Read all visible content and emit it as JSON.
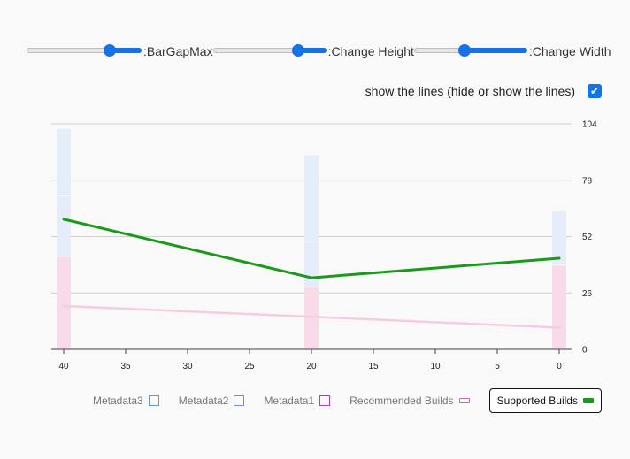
{
  "controls": {
    "sliders": [
      {
        "label": ":BarGapMax",
        "value": 0.75
      },
      {
        "label": ":Change Height",
        "value": 0.78
      },
      {
        "label": ":Change Width",
        "value": 0.44
      }
    ],
    "toggle": {
      "label": "show the lines (hide or show the lines)",
      "checked": true
    }
  },
  "colors": {
    "accent": "#1473e6",
    "metadata3": "#5b9bd5",
    "metadata2": "#7b88d8",
    "metadata1": "#b040b0",
    "recommended": "#c868b8",
    "supported": "#1a9a1a"
  },
  "chart_data": {
    "type": "bar",
    "x": [
      40,
      20,
      0
    ],
    "xlim": [
      41,
      -1
    ],
    "ylim": [
      0,
      104
    ],
    "x_ticks": [
      40,
      35,
      30,
      25,
      20,
      15,
      10,
      5,
      0
    ],
    "y_ticks": [
      0,
      26,
      52,
      78,
      104
    ],
    "y_axis_position": "right",
    "grid": true,
    "stacked_bars": [
      {
        "name": "Metadata1",
        "values": [
          43,
          29,
          39
        ]
      },
      {
        "name": "Metadata2",
        "values": [
          28,
          21,
          25
        ]
      },
      {
        "name": "Metadata3",
        "values": [
          31,
          40,
          0
        ]
      }
    ],
    "lines": [
      {
        "name": "Recommended Builds",
        "values": [
          20,
          15,
          10
        ]
      },
      {
        "name": "Supported Builds",
        "values": [
          60,
          33,
          42
        ]
      }
    ],
    "legend": {
      "position": "bottom",
      "items": [
        {
          "name": "Metadata3",
          "style": "box"
        },
        {
          "name": "Metadata2",
          "style": "box"
        },
        {
          "name": "Metadata1",
          "style": "box"
        },
        {
          "name": "Recommended Builds",
          "style": "line"
        },
        {
          "name": "Supported Builds",
          "style": "line",
          "active": true
        }
      ]
    }
  }
}
